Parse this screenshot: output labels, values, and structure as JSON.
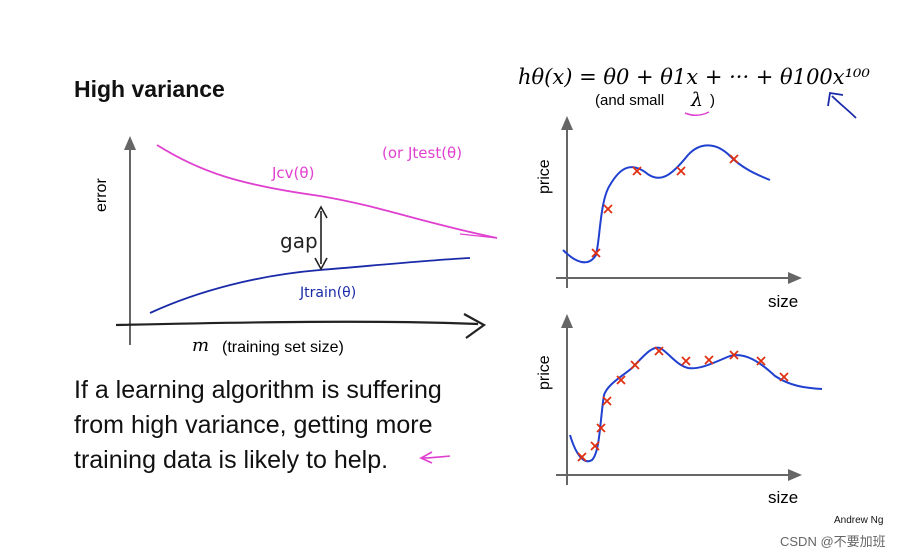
{
  "slide": {
    "title": "High variance",
    "body_lines": [
      "If a learning algorithm is suffering",
      "from high variance, getting more",
      "training data is likely to help."
    ],
    "author": "Andrew Ng",
    "watermark": "CSDN @不要加班"
  },
  "learning_curve": {
    "y_axis_label": "error",
    "x_axis_var": "m",
    "x_axis_label": "(training set size)",
    "cv_label": "Jcv(θ)",
    "test_label": "(or Jtest(θ)",
    "train_label": "Jtrain(θ)",
    "gap_label": "gap"
  },
  "hypothesis": {
    "formula": "hθ(x) = θ0 + θ1x + ··· + θ100x¹⁰⁰",
    "note_prefix": "(and small",
    "note_symbol": "λ",
    "note_suffix": ")"
  },
  "fit_plots": {
    "y_label": "price",
    "x_label": "size"
  },
  "colors": {
    "cv_curve": "#e040d0",
    "train_curve": "#1a2aa8",
    "fit_curve": "#2040d0",
    "data_points": "#e03010",
    "annotation": "#e040d0"
  }
}
